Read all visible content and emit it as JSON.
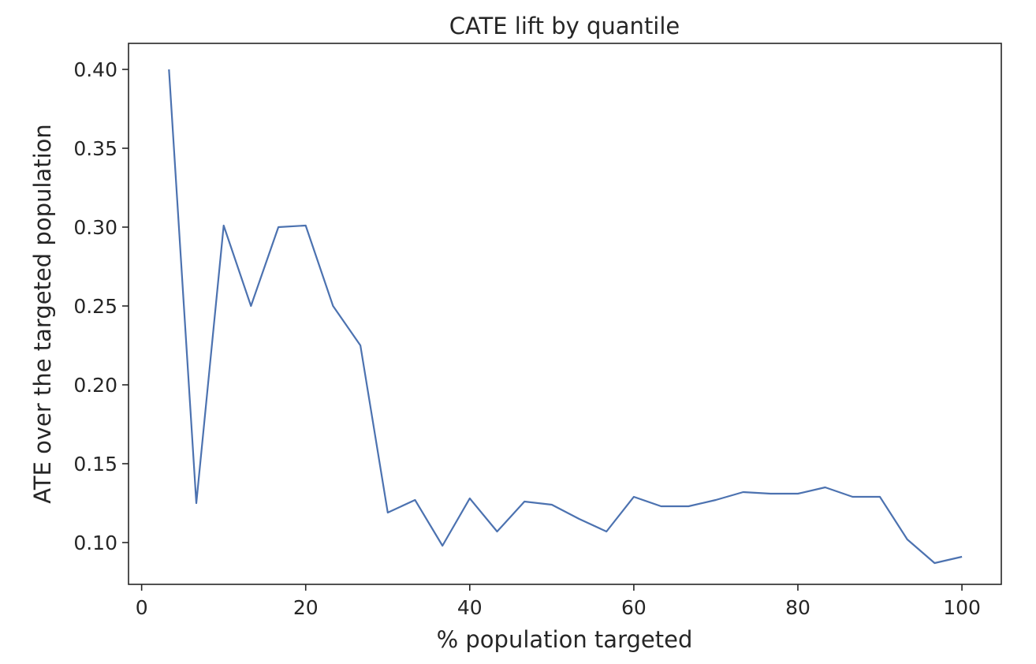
{
  "chart_data": {
    "type": "line",
    "title": "CATE lift by quantile",
    "xlabel": "% population targeted",
    "ylabel": "ATE over the targeted population",
    "xlim": [
      -1.6,
      104.8
    ],
    "ylim": [
      0.0735,
      0.4165
    ],
    "xticks": [
      0,
      20,
      40,
      60,
      80,
      100
    ],
    "yticks": [
      0.1,
      0.15,
      0.2,
      0.25,
      0.3,
      0.35,
      0.4
    ],
    "grid": false,
    "series": [
      {
        "color": "#4c72b0",
        "x": [
          3.33,
          6.67,
          10.0,
          13.33,
          16.67,
          20.0,
          23.33,
          26.67,
          30.0,
          33.33,
          36.67,
          40.0,
          43.33,
          46.67,
          50.0,
          53.33,
          56.67,
          60.0,
          63.33,
          66.67,
          70.0,
          73.33,
          76.67,
          80.0,
          83.33,
          86.67,
          90.0,
          93.33,
          96.67,
          100.0
        ],
        "y": [
          0.4,
          0.125,
          0.301,
          0.25,
          0.3,
          0.301,
          0.25,
          0.225,
          0.119,
          0.127,
          0.098,
          0.128,
          0.107,
          0.126,
          0.124,
          0.115,
          0.107,
          0.129,
          0.123,
          0.123,
          0.127,
          0.132,
          0.131,
          0.131,
          0.135,
          0.129,
          0.129,
          0.102,
          0.087,
          0.091
        ]
      }
    ]
  }
}
